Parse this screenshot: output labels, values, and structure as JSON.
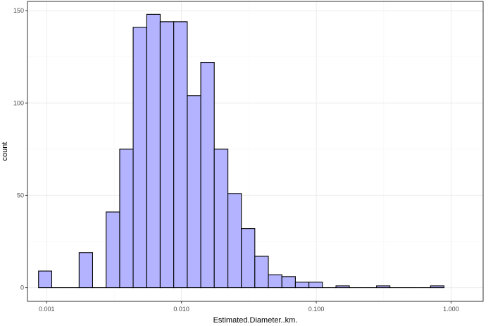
{
  "chart_data": {
    "type": "bar",
    "xlabel": "Estimated.Diameter..km.",
    "ylabel": "count",
    "x_scale": "log10",
    "xlim": [
      0.00072,
      1.73
    ],
    "ylim": [
      -7.4,
      155
    ],
    "grid": true,
    "x_ticks": [
      {
        "value": 0.001,
        "label": "0.001"
      },
      {
        "value": 0.01,
        "label": "0.010"
      },
      {
        "value": 0.1,
        "label": "0.100"
      },
      {
        "value": 1,
        "label": "1.000"
      }
    ],
    "y_ticks": [
      {
        "value": 0,
        "label": "0"
      },
      {
        "value": 50,
        "label": "50"
      },
      {
        "value": 100,
        "label": "100"
      },
      {
        "value": 150,
        "label": "150"
      }
    ],
    "bins": [
      {
        "x0": 0.00087,
        "x1": 0.00109,
        "count": 9
      },
      {
        "x0": 0.00109,
        "x1": 0.00138,
        "count": 0
      },
      {
        "x0": 0.00138,
        "x1": 0.00174,
        "count": 0
      },
      {
        "x0": 0.00174,
        "x1": 0.00219,
        "count": 19
      },
      {
        "x0": 0.00219,
        "x1": 0.00276,
        "count": 0
      },
      {
        "x0": 0.00276,
        "x1": 0.00348,
        "count": 41
      },
      {
        "x0": 0.00348,
        "x1": 0.00438,
        "count": 75
      },
      {
        "x0": 0.00438,
        "x1": 0.00552,
        "count": 141
      },
      {
        "x0": 0.00552,
        "x1": 0.00695,
        "count": 148
      },
      {
        "x0": 0.00695,
        "x1": 0.00876,
        "count": 144
      },
      {
        "x0": 0.00876,
        "x1": 0.01104,
        "count": 144
      },
      {
        "x0": 0.01104,
        "x1": 0.0139,
        "count": 104
      },
      {
        "x0": 0.0139,
        "x1": 0.0175,
        "count": 122
      },
      {
        "x0": 0.0175,
        "x1": 0.0221,
        "count": 75
      },
      {
        "x0": 0.0221,
        "x1": 0.0278,
        "count": 51
      },
      {
        "x0": 0.0278,
        "x1": 0.035,
        "count": 32
      },
      {
        "x0": 0.035,
        "x1": 0.0441,
        "count": 17
      },
      {
        "x0": 0.0441,
        "x1": 0.0556,
        "count": 7
      },
      {
        "x0": 0.0556,
        "x1": 0.07,
        "count": 6
      },
      {
        "x0": 0.07,
        "x1": 0.0882,
        "count": 3
      },
      {
        "x0": 0.0882,
        "x1": 0.111,
        "count": 3
      },
      {
        "x0": 0.111,
        "x1": 0.14,
        "count": 0
      },
      {
        "x0": 0.14,
        "x1": 0.176,
        "count": 1
      },
      {
        "x0": 0.176,
        "x1": 0.222,
        "count": 0
      },
      {
        "x0": 0.222,
        "x1": 0.28,
        "count": 0
      },
      {
        "x0": 0.28,
        "x1": 0.352,
        "count": 1
      },
      {
        "x0": 0.352,
        "x1": 0.444,
        "count": 0
      },
      {
        "x0": 0.444,
        "x1": 0.559,
        "count": 0
      },
      {
        "x0": 0.559,
        "x1": 0.704,
        "count": 0
      },
      {
        "x0": 0.704,
        "x1": 0.887,
        "count": 1
      }
    ],
    "fill_color": "#b3b3ff",
    "stroke_color": "#000000",
    "grid_major_color": "#ebebeb",
    "grid_minor_color": "#f5f5f5",
    "panel_border_color": "#333333"
  }
}
